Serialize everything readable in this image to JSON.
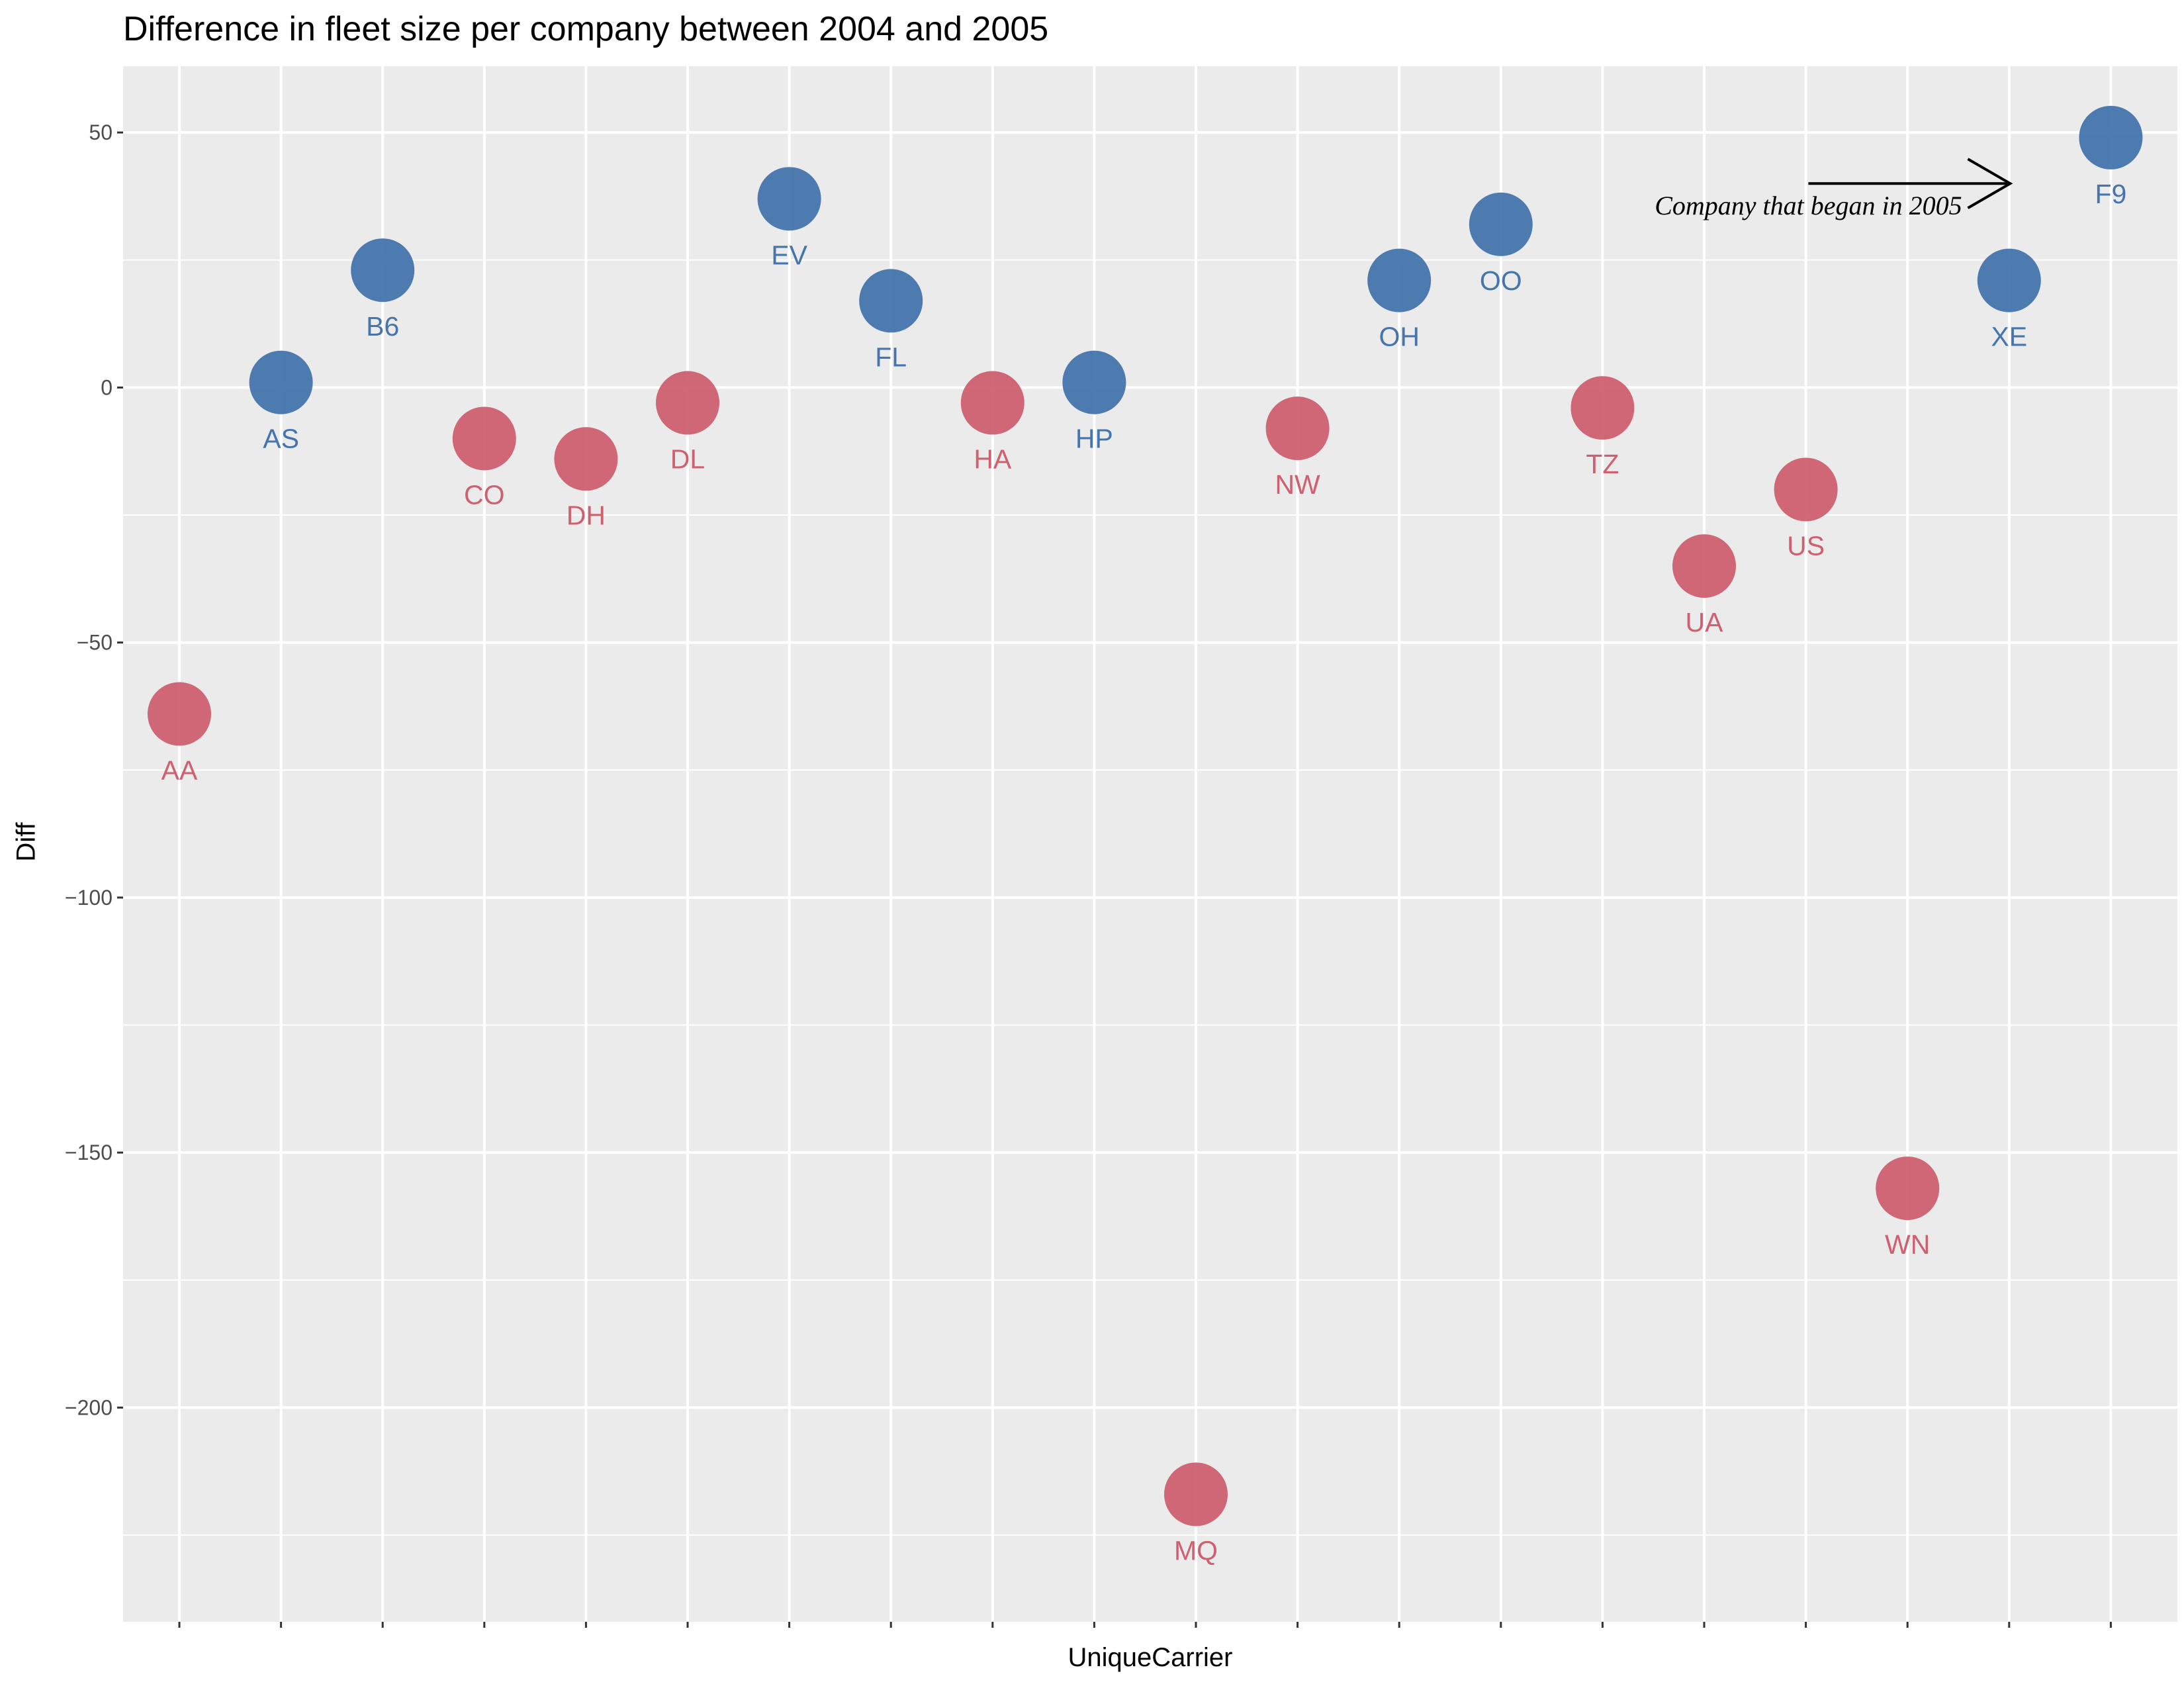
{
  "chart_data": {
    "type": "scatter",
    "title": "Difference in fleet size per company between 2004 and 2005",
    "xlabel": "UniqueCarrier",
    "ylabel": "Diff",
    "ylim": [
      -242,
      63
    ],
    "yticks": [
      50,
      0,
      -50,
      -100,
      -150,
      -200
    ],
    "ytick_labels": [
      "50",
      "0",
      "−50",
      "−100",
      "−150",
      "−200"
    ],
    "grid": true,
    "colors": {
      "positive": "#4575ac",
      "negative": "#cf6070",
      "panel": "#ebebeb",
      "grid": "#ffffff"
    },
    "points": [
      {
        "carrier": "AA",
        "diff": -64
      },
      {
        "carrier": "AS",
        "diff": 1
      },
      {
        "carrier": "B6",
        "diff": 23
      },
      {
        "carrier": "CO",
        "diff": -10
      },
      {
        "carrier": "DH",
        "diff": -14
      },
      {
        "carrier": "DL",
        "diff": -3
      },
      {
        "carrier": "EV",
        "diff": 37
      },
      {
        "carrier": "FL",
        "diff": 17
      },
      {
        "carrier": "HA",
        "diff": -3
      },
      {
        "carrier": "HP",
        "diff": 1
      },
      {
        "carrier": "MQ",
        "diff": -217
      },
      {
        "carrier": "NW",
        "diff": -8
      },
      {
        "carrier": "OH",
        "diff": 21
      },
      {
        "carrier": "OO",
        "diff": 32
      },
      {
        "carrier": "TZ",
        "diff": -4
      },
      {
        "carrier": "UA",
        "diff": -35
      },
      {
        "carrier": "US",
        "diff": -20
      },
      {
        "carrier": "WN",
        "diff": -157
      },
      {
        "carrier": "XE",
        "diff": 21
      },
      {
        "carrier": "F9",
        "diff": 49
      }
    ],
    "annotation": {
      "text": "Company that began in 2005",
      "points_to": "F9"
    }
  }
}
